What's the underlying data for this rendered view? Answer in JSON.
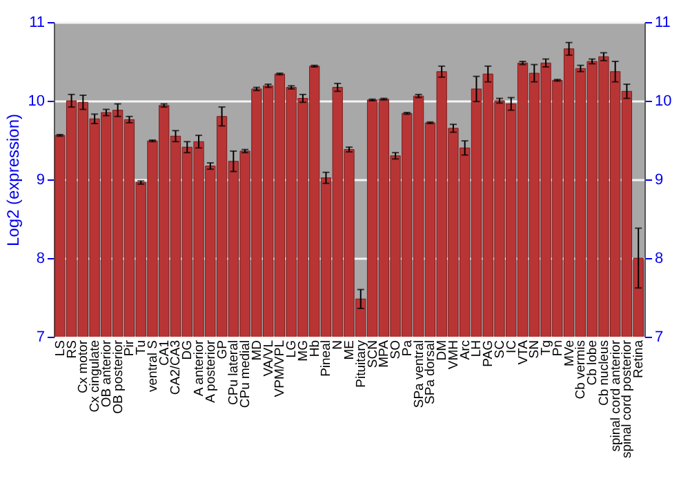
{
  "chart_data": {
    "type": "bar",
    "ylabel": "Log2 (expression)",
    "categories": [
      "LS",
      "RS",
      "Cx motor",
      "Cx cingulate",
      "OB anterior",
      "OB posterior",
      "Pir",
      "Tu",
      "ventral S",
      "CA1",
      "CA2/CA3",
      "DG",
      "A anterior",
      "A posterior",
      "GP",
      "CPu lateral",
      "CPu medial",
      "MD",
      "VA/VL",
      "VPM/VPL",
      "LG",
      "MG",
      "Hb",
      "Pineal",
      "N",
      "ME",
      "Pituitary",
      "SCN",
      "MPA",
      "SO",
      "Pa",
      "SPa ventral",
      "SPa dorsal",
      "DM",
      "VMH",
      "Arc",
      "LH",
      "PAG",
      "SC",
      "IC",
      "VTA",
      "SN",
      "Tg",
      "Pn",
      "MVe",
      "Cb vermis",
      "Cb lobe",
      "Cb nucleus",
      "spinal cord anterior",
      "spinal cord posterior",
      "Retina"
    ],
    "values": [
      9.56,
      10.0,
      9.98,
      9.77,
      9.85,
      9.88,
      9.76,
      8.96,
      9.49,
      9.94,
      9.55,
      9.41,
      9.48,
      9.17,
      9.8,
      9.23,
      9.36,
      10.15,
      10.19,
      10.34,
      10.17,
      10.03,
      10.44,
      9.02,
      10.17,
      9.38,
      7.48,
      10.01,
      10.02,
      9.3,
      9.84,
      10.06,
      9.72,
      10.37,
      9.65,
      9.4,
      10.15,
      10.34,
      10.0,
      9.96,
      10.48,
      10.35,
      10.48,
      10.26,
      10.66,
      10.41,
      10.5,
      10.56,
      10.37,
      10.12,
      8.0
    ],
    "errors": [
      0.01,
      0.08,
      0.09,
      0.06,
      0.04,
      0.08,
      0.04,
      0.02,
      0.01,
      0.02,
      0.07,
      0.07,
      0.08,
      0.04,
      0.12,
      0.13,
      0.02,
      0.02,
      0.02,
      0.01,
      0.02,
      0.05,
      0.01,
      0.07,
      0.05,
      0.03,
      0.12,
      0.01,
      0.01,
      0.04,
      0.01,
      0.02,
      0.01,
      0.07,
      0.05,
      0.09,
      0.16,
      0.1,
      0.03,
      0.08,
      0.02,
      0.11,
      0.05,
      0.01,
      0.08,
      0.04,
      0.03,
      0.05,
      0.13,
      0.09,
      0.38
    ],
    "color": "#b93535",
    "ylim": [
      7,
      11
    ],
    "yticks": [
      7,
      8,
      9,
      10,
      11
    ],
    "y2lim": [
      7,
      11
    ],
    "y2ticks": [
      7,
      8,
      9,
      10,
      11
    ],
    "grid": "y"
  }
}
